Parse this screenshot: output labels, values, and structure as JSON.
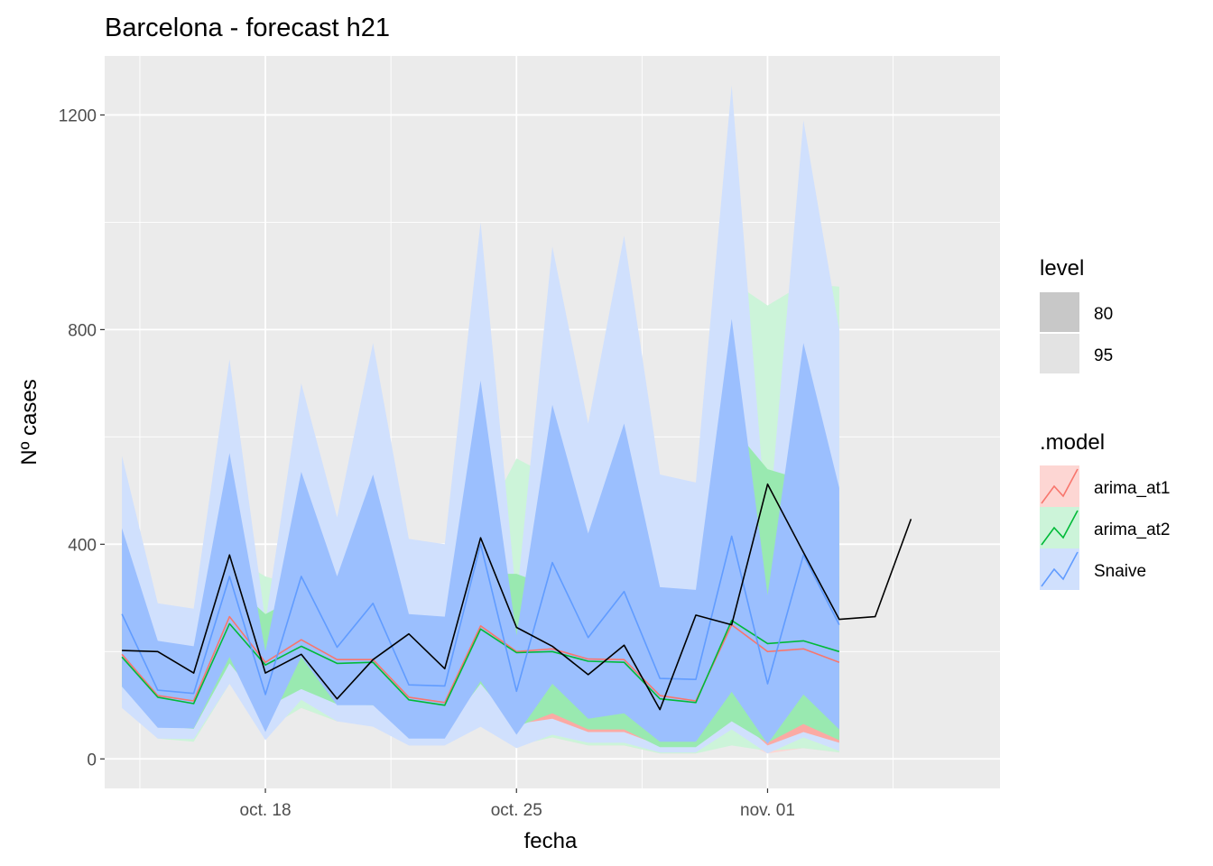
{
  "chart_data": {
    "type": "area",
    "title": "Barcelona - forecast h21",
    "xlabel": "fecha",
    "ylabel": "Nº cases",
    "x_axis": {
      "type": "date",
      "ticks": [
        "2020-10-18",
        "2020-10-25",
        "2020-11-01"
      ],
      "tick_labels": [
        "oct. 18",
        "oct. 25",
        "nov. 01"
      ],
      "range": [
        "2020-10-13",
        "2020-11-07"
      ]
    },
    "y_axis": {
      "ticks": [
        0,
        400,
        800,
        1200
      ],
      "tick_labels": [
        "0",
        "400",
        "800",
        "1200"
      ],
      "range": [
        -55,
        1310
      ]
    },
    "grid": true,
    "background": "#ebebeb",
    "legend": {
      "position": "right",
      "level": {
        "title": "level",
        "items": [
          {
            "label": "80",
            "color": "#c8c8c8"
          },
          {
            "label": "95",
            "color": "#e3e3e3"
          }
        ]
      },
      "model": {
        "title": ".model",
        "items": [
          {
            "label": "arima_at1",
            "color": "#F8766D",
            "fill": "#fdd6d3"
          },
          {
            "label": "arima_at2",
            "color": "#00BA38",
            "fill": "#ccf4d9"
          },
          {
            "label": "Snaive",
            "color": "#619CFF",
            "fill": "#d0e0fd"
          }
        ]
      }
    },
    "dates": [
      "2020-10-14",
      "2020-10-15",
      "2020-10-16",
      "2020-10-17",
      "2020-10-18",
      "2020-10-19",
      "2020-10-20",
      "2020-10-21",
      "2020-10-22",
      "2020-10-23",
      "2020-10-24",
      "2020-10-25",
      "2020-10-26",
      "2020-10-27",
      "2020-10-28",
      "2020-10-29",
      "2020-10-30",
      "2020-10-31",
      "2020-11-01",
      "2020-11-02",
      "2020-11-03",
      "2020-11-04",
      "2020-11-05",
      "2020-11-06"
    ],
    "series": [
      {
        "name": "arima_at1",
        "color": "#F8766D",
        "fill": "#fdd6d3",
        "fill80": "#fbaaa4",
        "mean": [
          195,
          118,
          108,
          265,
          180,
          222,
          185,
          185,
          115,
          105,
          248,
          200,
          205,
          186,
          185,
          118,
          108,
          250,
          200,
          205,
          180
        ],
        "lo80": [
          140,
          65,
          60,
          190,
          95,
          135,
          105,
          105,
          60,
          55,
          150,
          65,
          75,
          50,
          50,
          25,
          25,
          85,
          25,
          50,
          30
        ],
        "hi80": [
          250,
          170,
          160,
          345,
          260,
          320,
          270,
          270,
          170,
          160,
          345,
          280,
          300,
          280,
          280,
          200,
          190,
          420,
          380,
          360,
          340
        ],
        "lo95": [
          110,
          40,
          35,
          150,
          55,
          95,
          70,
          70,
          35,
          30,
          100,
          30,
          40,
          25,
          25,
          10,
          10,
          40,
          10,
          20,
          12
        ],
        "hi95": [
          285,
          210,
          200,
          390,
          310,
          370,
          320,
          320,
          215,
          205,
          400,
          340,
          370,
          350,
          350,
          260,
          250,
          520,
          480,
          450,
          420
        ]
      },
      {
        "name": "arima_at2",
        "color": "#00BA38",
        "fill": "#ccf4d9",
        "fill80": "#99e9b0",
        "mean": [
          190,
          115,
          103,
          252,
          175,
          210,
          178,
          180,
          110,
          100,
          242,
          198,
          200,
          182,
          180,
          112,
          105,
          258,
          215,
          220,
          200
        ],
        "lo80": [
          135,
          62,
          56,
          178,
          95,
          130,
          102,
          100,
          57,
          52,
          140,
          60,
          85,
          55,
          55,
          22,
          22,
          70,
          30,
          65,
          35
        ],
        "hi80": [
          245,
          168,
          155,
          330,
          270,
          305,
          260,
          265,
          165,
          155,
          345,
          345,
          320,
          315,
          310,
          230,
          220,
          620,
          540,
          520,
          480
        ],
        "lo95": [
          105,
          38,
          32,
          140,
          55,
          95,
          70,
          68,
          30,
          28,
          90,
          25,
          40,
          25,
          25,
          10,
          10,
          25,
          15,
          20,
          12
        ],
        "hi95": [
          280,
          205,
          195,
          380,
          340,
          320,
          300,
          310,
          210,
          200,
          430,
          560,
          525,
          545,
          520,
          385,
          370,
          890,
          845,
          885,
          880
        ]
      },
      {
        "name": "Snaive",
        "color": "#619CFF",
        "fill": "#d0e0fd",
        "fill80": "#9bbffe",
        "mean": [
          270,
          128,
          122,
          340,
          120,
          340,
          208,
          290,
          138,
          136,
          400,
          126,
          366,
          226,
          312,
          150,
          148,
          415,
          140,
          380,
          250
        ],
        "lo80": [
          135,
          58,
          57,
          190,
          50,
          190,
          100,
          100,
          38,
          38,
          145,
          45,
          140,
          75,
          85,
          32,
          32,
          125,
          28,
          120,
          55
        ],
        "hi80": [
          430,
          220,
          210,
          570,
          200,
          535,
          340,
          530,
          270,
          265,
          705,
          230,
          660,
          420,
          625,
          320,
          315,
          820,
          305,
          775,
          505
        ],
        "lo95": [
          95,
          38,
          37,
          140,
          35,
          110,
          70,
          60,
          25,
          25,
          60,
          20,
          45,
          30,
          30,
          12,
          12,
          55,
          10,
          40,
          15
        ],
        "hi95": [
          565,
          290,
          280,
          745,
          255,
          700,
          450,
          775,
          410,
          400,
          1000,
          295,
          955,
          625,
          975,
          530,
          515,
          1255,
          410,
          1190,
          800
        ]
      }
    ],
    "actual": {
      "name": "observed",
      "color": "#000000",
      "values": [
        202,
        200,
        160,
        380,
        160,
        195,
        112,
        185,
        233,
        168,
        412,
        245,
        210,
        157,
        212,
        92,
        268,
        250,
        512,
        385,
        260,
        265,
        447
      ],
      "start_index": 0
    }
  }
}
